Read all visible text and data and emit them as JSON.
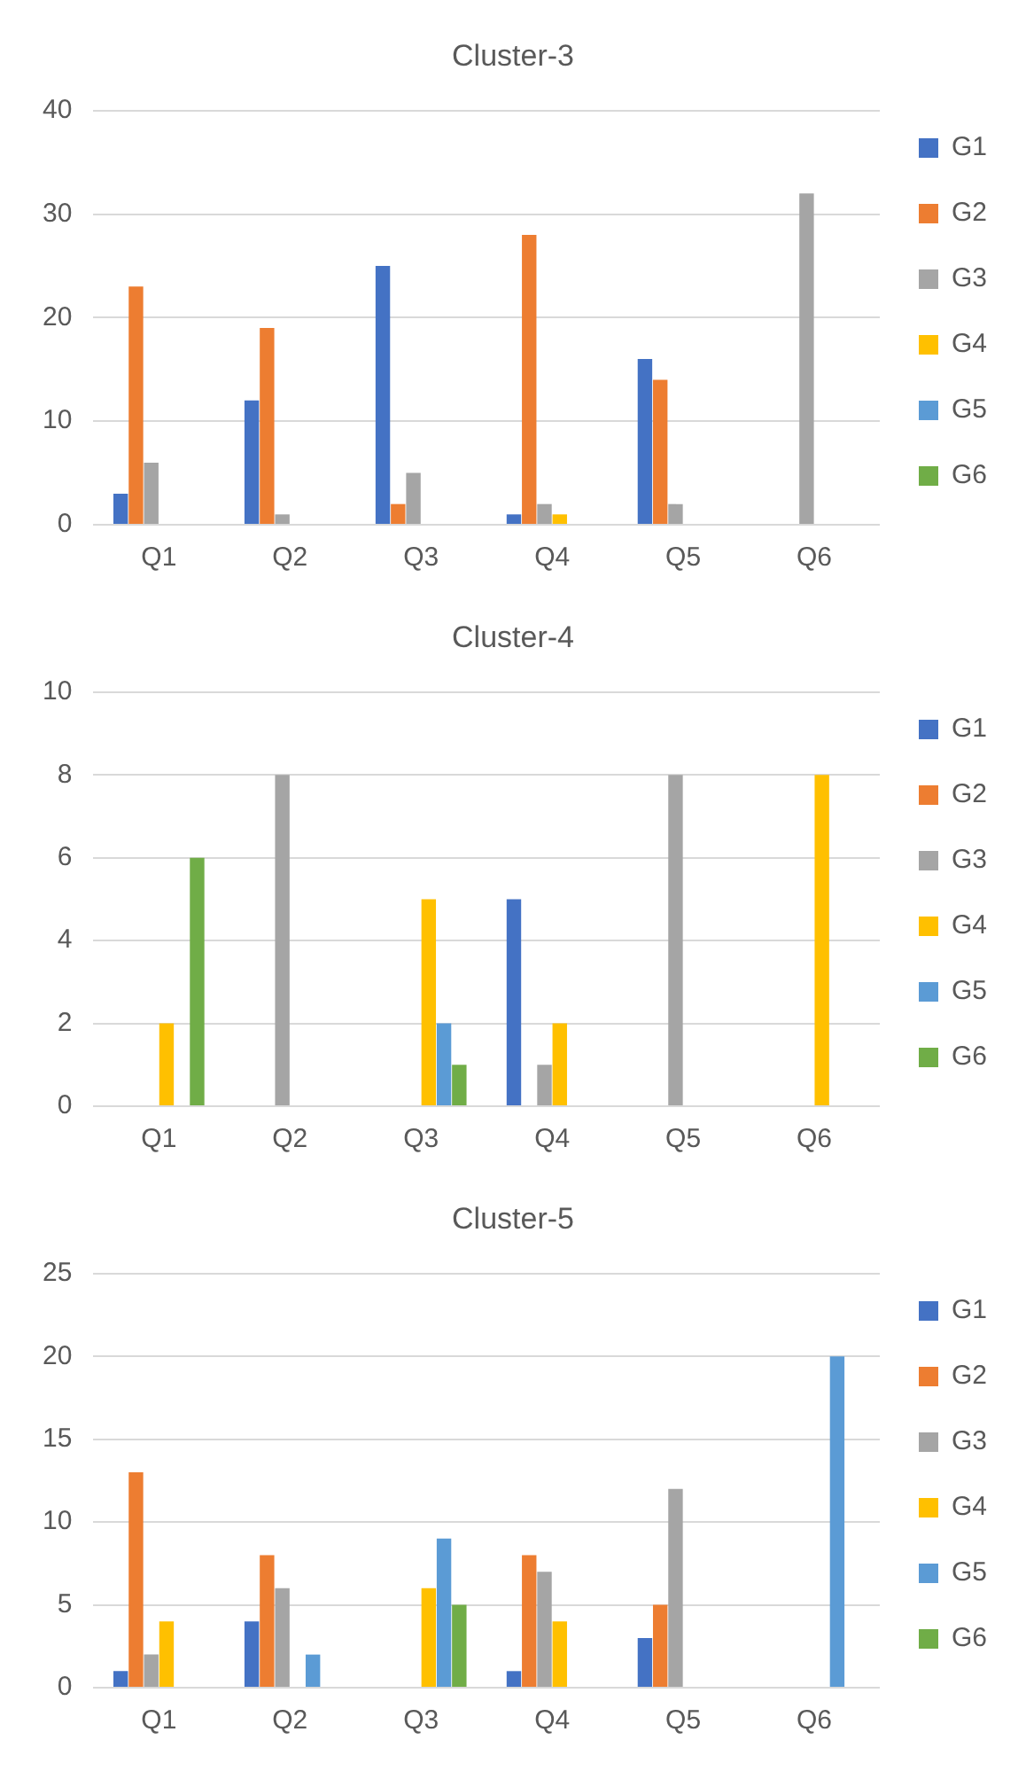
{
  "chart_data": [
    {
      "type": "bar",
      "title": "Cluster-3",
      "categories": [
        "Q1",
        "Q2",
        "Q3",
        "Q4",
        "Q5",
        "Q6"
      ],
      "ylim": [
        0,
        40
      ],
      "yticks": [
        0,
        10,
        20,
        30,
        40
      ],
      "grid": "y",
      "legend": "right",
      "series": [
        {
          "name": "G1",
          "color": "#4472c4",
          "values": [
            3,
            12,
            25,
            1,
            16,
            0
          ]
        },
        {
          "name": "G2",
          "color": "#ed7d31",
          "values": [
            23,
            19,
            2,
            28,
            14,
            0
          ]
        },
        {
          "name": "G3",
          "color": "#a5a5a5",
          "values": [
            6,
            1,
            5,
            2,
            2,
            32
          ]
        },
        {
          "name": "G4",
          "color": "#ffc000",
          "values": [
            0,
            0,
            0,
            1,
            0,
            0
          ]
        },
        {
          "name": "G5",
          "color": "#5b9bd5",
          "values": [
            0,
            0,
            0,
            0,
            0,
            0
          ]
        },
        {
          "name": "G6",
          "color": "#70ad47",
          "values": [
            0,
            0,
            0,
            0,
            0,
            0
          ]
        }
      ]
    },
    {
      "type": "bar",
      "title": "Cluster-4",
      "categories": [
        "Q1",
        "Q2",
        "Q3",
        "Q4",
        "Q5",
        "Q6"
      ],
      "ylim": [
        0,
        10
      ],
      "yticks": [
        0,
        2,
        4,
        6,
        8,
        10
      ],
      "grid": "y",
      "legend": "right",
      "series": [
        {
          "name": "G1",
          "color": "#4472c4",
          "values": [
            0,
            0,
            0,
            5,
            0,
            0
          ]
        },
        {
          "name": "G2",
          "color": "#ed7d31",
          "values": [
            0,
            0,
            0,
            0,
            0,
            0
          ]
        },
        {
          "name": "G3",
          "color": "#a5a5a5",
          "values": [
            0,
            8,
            0,
            1,
            8,
            0
          ]
        },
        {
          "name": "G4",
          "color": "#ffc000",
          "values": [
            2,
            0,
            5,
            2,
            0,
            8
          ]
        },
        {
          "name": "G5",
          "color": "#5b9bd5",
          "values": [
            0,
            0,
            2,
            0,
            0,
            0
          ]
        },
        {
          "name": "G6",
          "color": "#70ad47",
          "values": [
            6,
            0,
            1,
            0,
            0,
            0
          ]
        }
      ]
    },
    {
      "type": "bar",
      "title": "Cluster-5",
      "categories": [
        "Q1",
        "Q2",
        "Q3",
        "Q4",
        "Q5",
        "Q6"
      ],
      "ylim": [
        0,
        25
      ],
      "yticks": [
        0,
        5,
        10,
        15,
        20,
        25
      ],
      "grid": "y",
      "legend": "right",
      "series": [
        {
          "name": "G1",
          "color": "#4472c4",
          "values": [
            1,
            4,
            0,
            1,
            3,
            0
          ]
        },
        {
          "name": "G2",
          "color": "#ed7d31",
          "values": [
            13,
            8,
            0,
            8,
            5,
            0
          ]
        },
        {
          "name": "G3",
          "color": "#a5a5a5",
          "values": [
            2,
            6,
            0,
            7,
            12,
            0
          ]
        },
        {
          "name": "G4",
          "color": "#ffc000",
          "values": [
            4,
            0,
            6,
            4,
            0,
            0
          ]
        },
        {
          "name": "G5",
          "color": "#5b9bd5",
          "values": [
            0,
            2,
            9,
            0,
            0,
            20
          ]
        },
        {
          "name": "G6",
          "color": "#70ad47",
          "values": [
            0,
            0,
            5,
            0,
            0,
            0
          ]
        }
      ]
    }
  ]
}
